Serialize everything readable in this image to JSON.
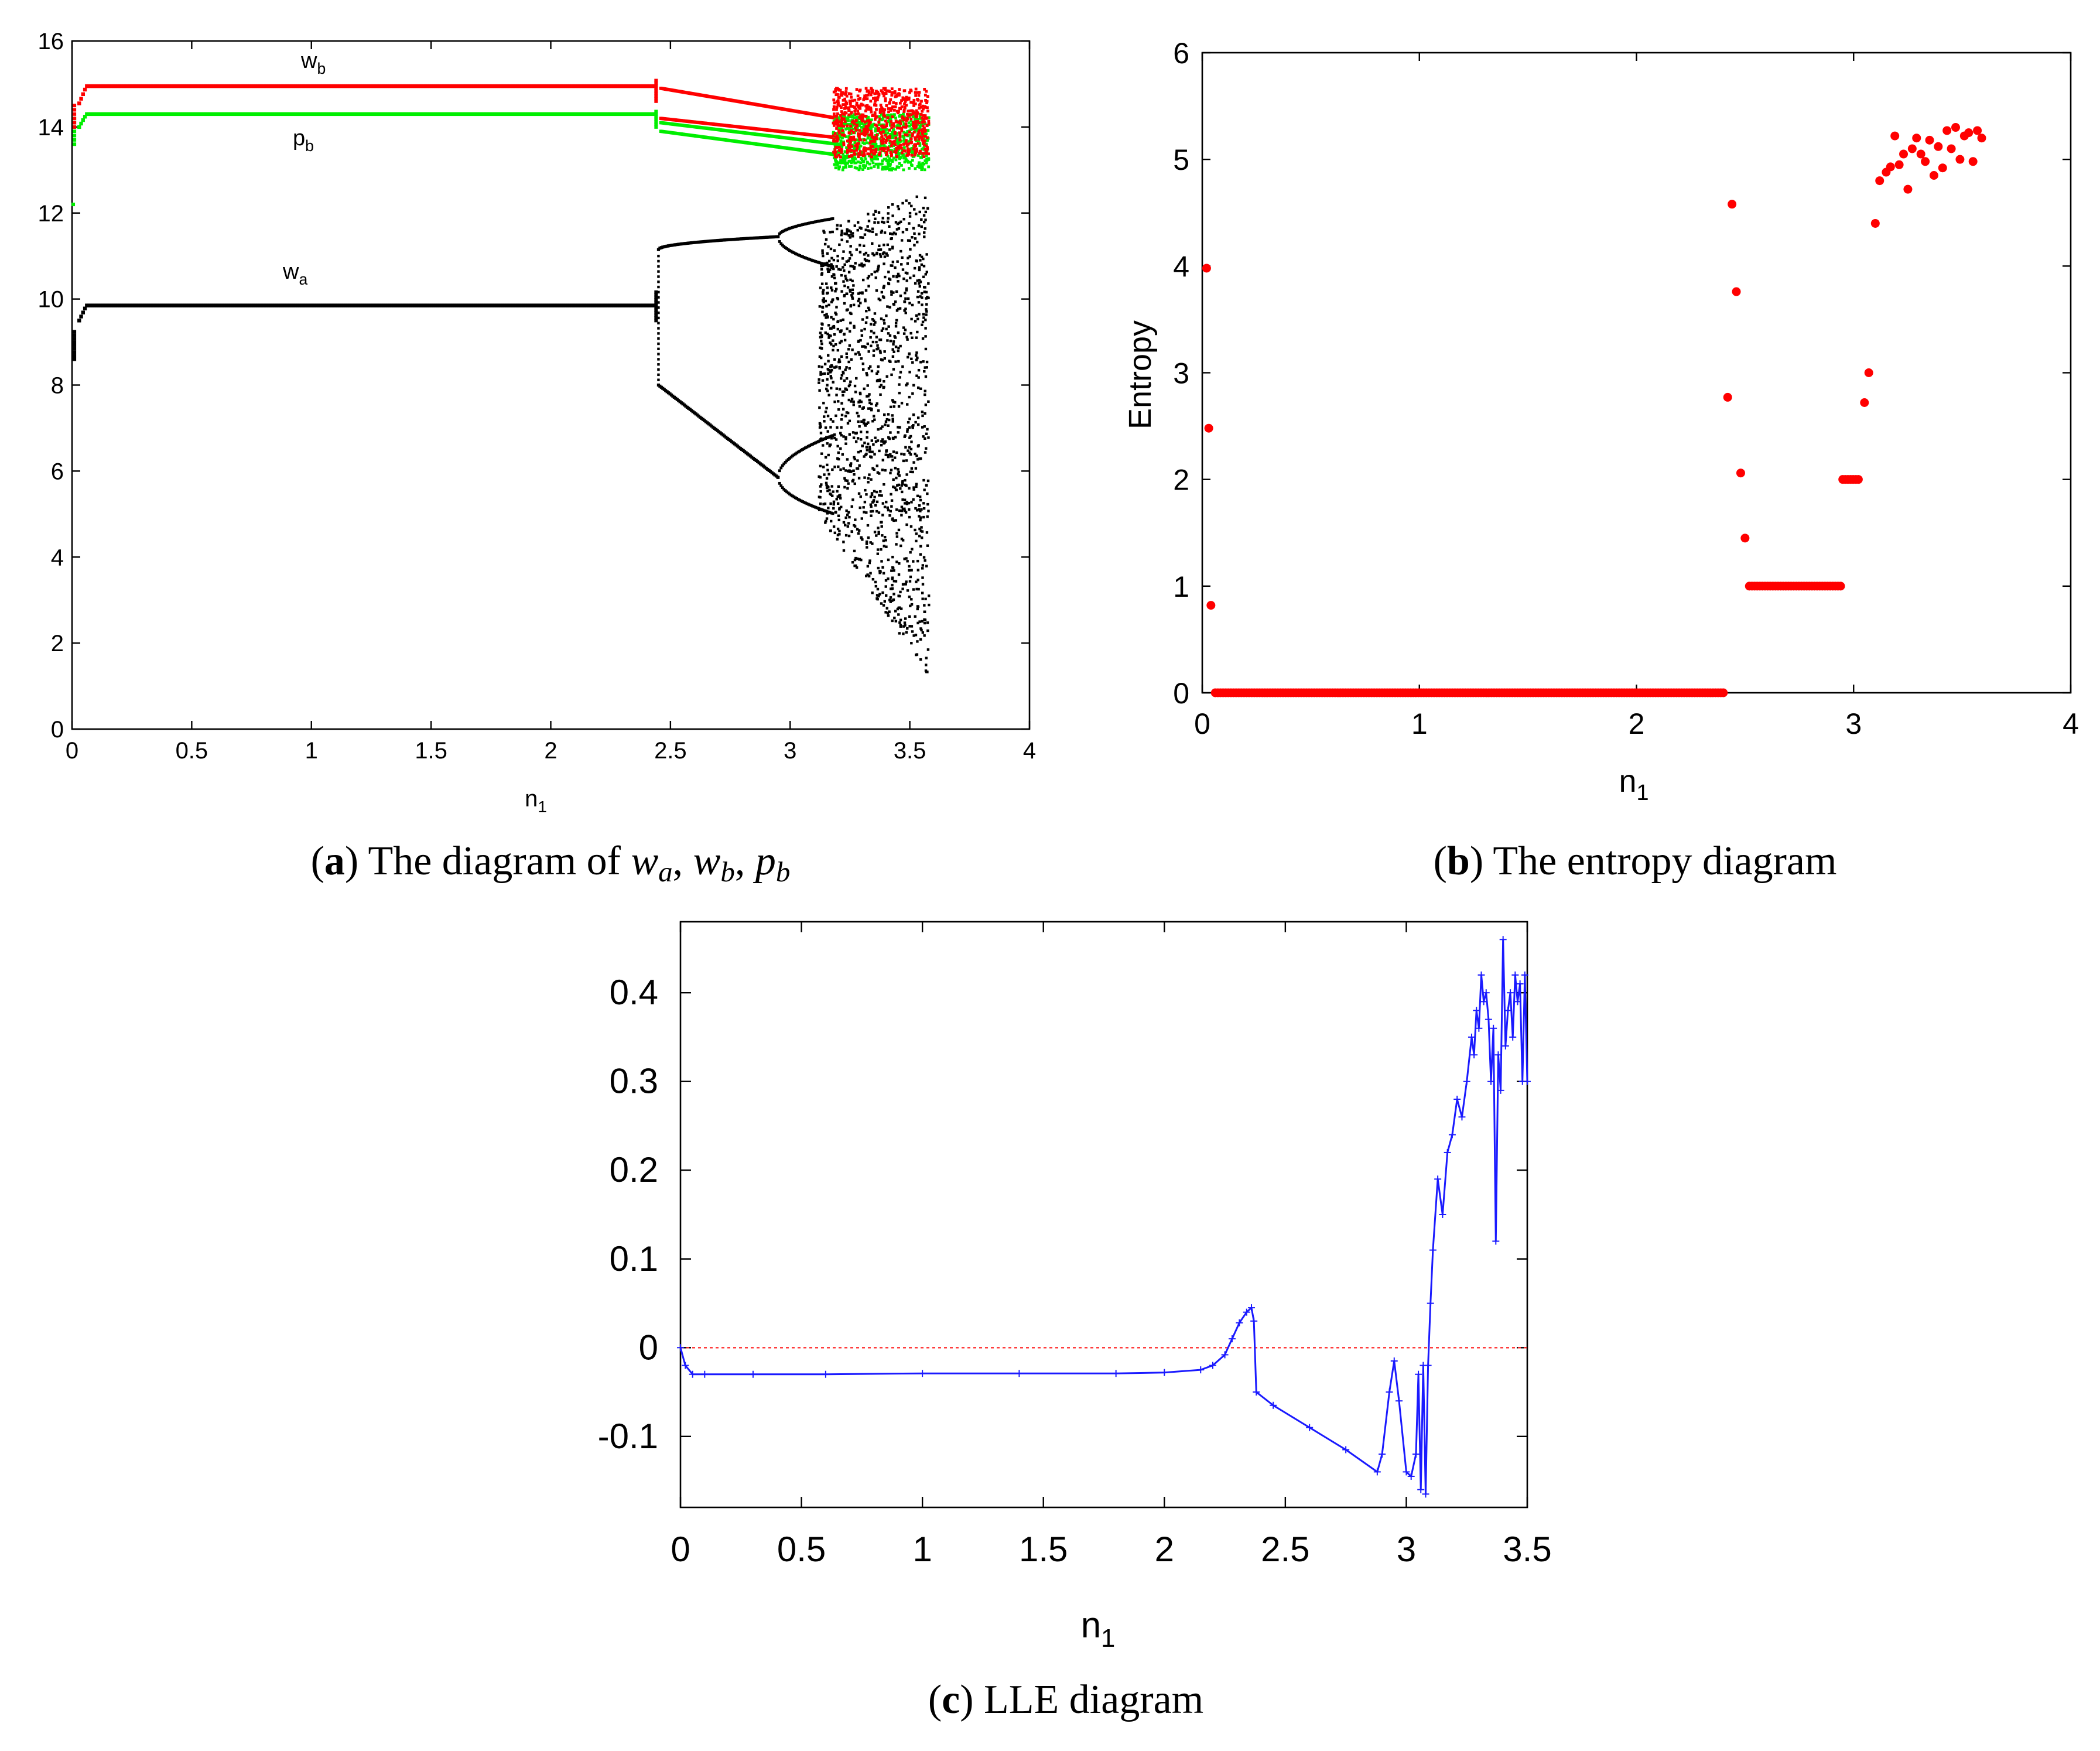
{
  "chart_data": [
    {
      "type": "scatter",
      "panel": "a",
      "title": "",
      "xlabel": "n",
      "xlabel_sub": "1",
      "ylabel": "",
      "xlim": [
        0,
        4
      ],
      "ylim": [
        0,
        16
      ],
      "xticks": [
        "0",
        "0.5",
        "1",
        "1.5",
        "2",
        "2.5",
        "3",
        "3.5",
        "4"
      ],
      "yticks": [
        "0",
        "2",
        "4",
        "6",
        "8",
        "10",
        "12",
        "14",
        "16"
      ],
      "caption_letter": "a",
      "caption_text": " The diagram of ",
      "caption_math": [
        {
          "base": "w",
          "sub": "a"
        },
        {
          "base": "w",
          "sub": "b"
        },
        {
          "base": "p",
          "sub": "b"
        }
      ],
      "series": [
        {
          "name": "w",
          "sub": "b",
          "color": "#ff0000",
          "stable_level": 14.95,
          "bifurcation_n": 2.44,
          "branches_at_end": [
            14.2,
            13.7
          ],
          "chaos_range": [
            12.9,
            15.0
          ]
        },
        {
          "name": "p",
          "sub": "b",
          "color": "#00ee00",
          "stable_level": 14.3,
          "bifurcation_n": 2.44,
          "branches_at_end": [
            13.7,
            13.2
          ],
          "chaos_range": [
            12.6,
            14.2
          ]
        },
        {
          "name": "w",
          "sub": "a",
          "color": "#000000",
          "stable_level": 9.85,
          "bifurcation_n": 2.44,
          "period2_start": [
            11.15,
            8.0
          ],
          "period2_end_n": 2.95,
          "period2_end": [
            11.45,
            5.85
          ],
          "chaos_range": [
            1.2,
            12.5
          ]
        }
      ]
    },
    {
      "type": "scatter",
      "panel": "b",
      "title": "",
      "xlabel": "n",
      "xlabel_sub": "1",
      "ylabel": "Entropy",
      "xlim": [
        0,
        4
      ],
      "ylim": [
        0,
        6
      ],
      "xticks": [
        "0",
        "1",
        "2",
        "3",
        "4"
      ],
      "yticks": [
        "0",
        "1",
        "2",
        "3",
        "4",
        "5",
        "6"
      ],
      "caption_letter": "b",
      "caption_text": " The entropy diagram",
      "color": "#ff0000",
      "points": [
        [
          0.02,
          3.98
        ],
        [
          0.03,
          2.48
        ],
        [
          0.04,
          0.82
        ],
        [
          2.42,
          2.77
        ],
        [
          2.44,
          4.58
        ],
        [
          2.46,
          3.76
        ],
        [
          2.48,
          2.06
        ],
        [
          2.5,
          1.45
        ],
        [
          3.05,
          2.72
        ],
        [
          3.07,
          3.0
        ],
        [
          3.1,
          4.4
        ],
        [
          3.12,
          4.8
        ],
        [
          3.15,
          4.88
        ],
        [
          3.17,
          4.93
        ],
        [
          3.19,
          5.22
        ],
        [
          3.21,
          4.95
        ],
        [
          3.23,
          5.05
        ],
        [
          3.25,
          4.72
        ],
        [
          3.27,
          5.1
        ],
        [
          3.29,
          5.2
        ],
        [
          3.31,
          5.05
        ],
        [
          3.33,
          4.98
        ],
        [
          3.35,
          5.18
        ],
        [
          3.37,
          4.85
        ],
        [
          3.39,
          5.12
        ],
        [
          3.41,
          4.92
        ],
        [
          3.43,
          5.27
        ],
        [
          3.45,
          5.1
        ],
        [
          3.47,
          5.3
        ],
        [
          3.49,
          5.0
        ],
        [
          3.51,
          5.22
        ],
        [
          3.53,
          5.25
        ],
        [
          3.55,
          4.98
        ],
        [
          3.57,
          5.27
        ],
        [
          3.59,
          5.2
        ]
      ],
      "flat_runs": [
        {
          "x_start": 0.06,
          "x_end": 2.41,
          "y": 0
        },
        {
          "x_start": 2.52,
          "x_end": 2.94,
          "y": 1
        },
        {
          "x_start": 2.95,
          "x_end": 3.03,
          "y": 2
        }
      ]
    },
    {
      "type": "line",
      "panel": "c",
      "title": "",
      "xlabel": "n",
      "xlabel_sub": "1",
      "ylabel": "",
      "xlim": [
        0,
        3.5
      ],
      "ylim": [
        -0.18,
        0.48
      ],
      "xticks": [
        "0",
        "0.5",
        "1",
        "1.5",
        "2",
        "2.5",
        "3",
        "3.5"
      ],
      "yticks": [
        "-0.1",
        "0",
        "0.1",
        "0.2",
        "0.3",
        "0.4"
      ],
      "caption_letter": "c",
      "caption_text": " LLE diagram",
      "series_color": "#1a1aff",
      "zero_line_color": "#ff3030",
      "x": [
        0,
        0.02,
        0.05,
        0.1,
        0.3,
        0.6,
        1.0,
        1.4,
        1.8,
        2.0,
        2.15,
        2.2,
        2.25,
        2.28,
        2.31,
        2.34,
        2.36,
        2.37,
        2.38,
        2.45,
        2.6,
        2.75,
        2.88,
        2.9,
        2.93,
        2.95,
        2.97,
        3.0,
        3.02,
        3.04,
        3.05,
        3.06,
        3.07,
        3.08,
        3.09,
        3.1,
        3.11,
        3.13,
        3.15,
        3.17,
        3.19,
        3.21,
        3.23,
        3.25,
        3.27,
        3.28,
        3.29,
        3.3,
        3.31,
        3.32,
        3.33,
        3.34,
        3.35,
        3.36,
        3.37,
        3.38,
        3.39,
        3.4,
        3.41,
        3.42,
        3.43,
        3.44,
        3.45,
        3.46,
        3.47,
        3.48,
        3.49,
        3.5
      ],
      "y": [
        0.0,
        -0.02,
        -0.03,
        -0.03,
        -0.03,
        -0.03,
        -0.029,
        -0.029,
        -0.029,
        -0.028,
        -0.025,
        -0.02,
        -0.008,
        0.01,
        0.028,
        0.04,
        0.045,
        0.03,
        -0.05,
        -0.065,
        -0.09,
        -0.115,
        -0.14,
        -0.12,
        -0.05,
        -0.015,
        -0.06,
        -0.14,
        -0.145,
        -0.12,
        -0.03,
        -0.16,
        -0.02,
        -0.165,
        -0.02,
        0.05,
        0.11,
        0.19,
        0.15,
        0.22,
        0.24,
        0.28,
        0.26,
        0.3,
        0.35,
        0.33,
        0.38,
        0.36,
        0.42,
        0.39,
        0.4,
        0.37,
        0.3,
        0.36,
        0.12,
        0.33,
        0.29,
        0.46,
        0.34,
        0.38,
        0.4,
        0.35,
        0.42,
        0.39,
        0.41,
        0.3,
        0.42,
        0.3
      ]
    }
  ]
}
